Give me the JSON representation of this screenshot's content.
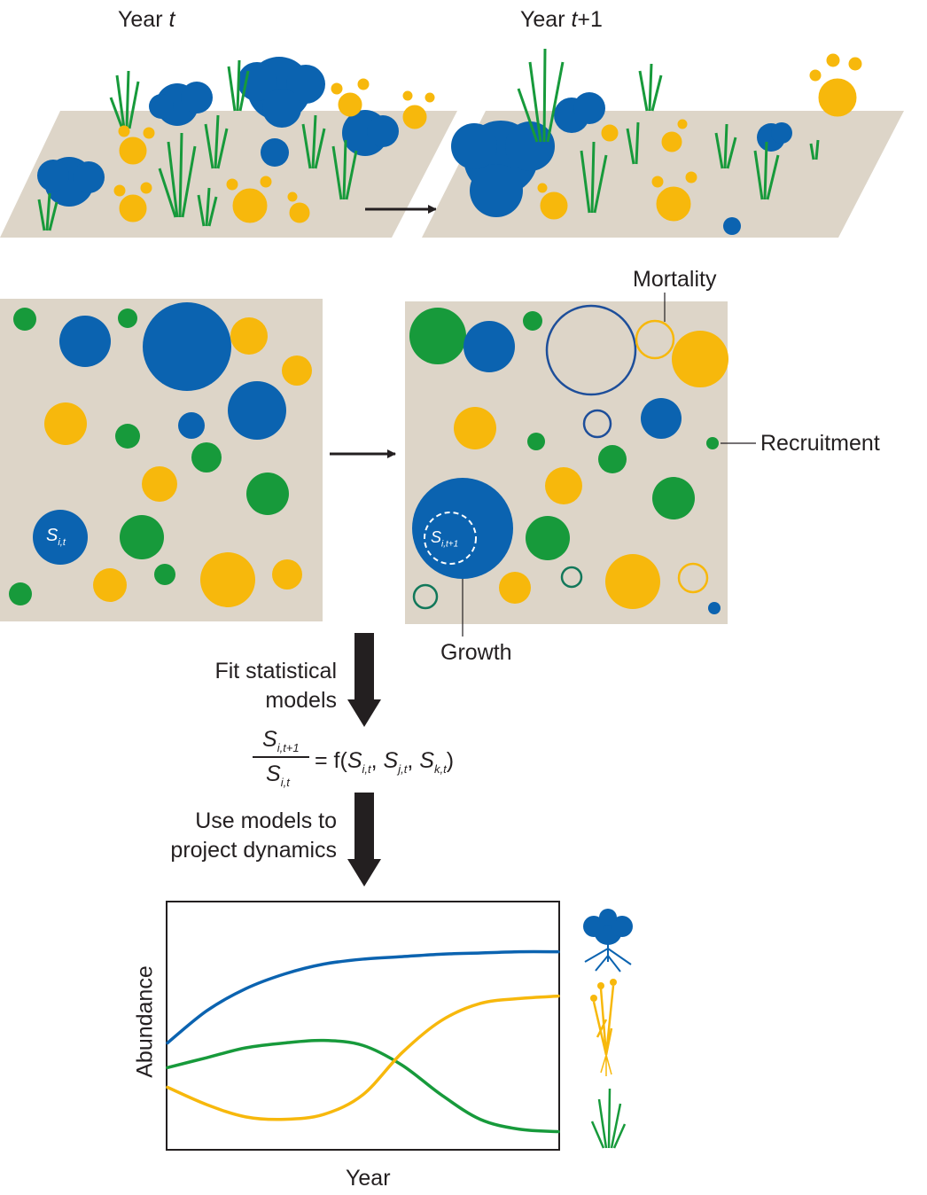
{
  "labels": {
    "year_t_prefix": "Year ",
    "year_t_var": "t",
    "year_t1_prefix": "Year ",
    "year_t1_var": "t",
    "year_t1_suffix": "+1",
    "mortality": "Mortality",
    "recruitment": "Recruitment",
    "growth": "Growth",
    "fit_models_line1": "Fit statistical",
    "fit_models_line2": "models",
    "use_models_line1": "Use models to",
    "use_models_line2": "project dynamics",
    "size_t": "S",
    "size_t_sub": "i,t",
    "size_t1": "S",
    "size_t1_sub": "i,t+1"
  },
  "formula": {
    "numerator": "S",
    "numerator_sub": "i,t+1",
    "denominator": "S",
    "denominator_sub": "i,t",
    "equals_f": "= f(",
    "arg1": "S",
    "arg1_sub": "i,t",
    "arg2": "S",
    "arg2_sub": "j,t",
    "arg3": "S",
    "arg3_sub": "k,t",
    "comma": ", ",
    "close": ")"
  },
  "colors": {
    "blue": "#0b63b0",
    "yellow": "#f7b80c",
    "green": "#179a3b",
    "plot_bg": "#ddd5c8",
    "dark_blue_outline": "#1d4e9a",
    "dark_green_outline": "#12785a"
  },
  "chart_data": {
    "type": "line",
    "xlabel": "Year",
    "ylabel": "Abundance",
    "title": "",
    "x": [
      0,
      0.1,
      0.2,
      0.3,
      0.4,
      0.5,
      0.6,
      0.7,
      0.8,
      0.9,
      1.0
    ],
    "ylim": [
      0,
      1
    ],
    "series": [
      {
        "color": "#0b63b0",
        "values": [
          0.43,
          0.56,
          0.65,
          0.71,
          0.75,
          0.77,
          0.78,
          0.79,
          0.795,
          0.8,
          0.8
        ]
      },
      {
        "color": "#179a3b",
        "values": [
          0.33,
          0.37,
          0.41,
          0.43,
          0.44,
          0.42,
          0.34,
          0.22,
          0.12,
          0.08,
          0.07
        ]
      },
      {
        "color": "#f7b80c",
        "values": [
          0.25,
          0.18,
          0.13,
          0.12,
          0.14,
          0.22,
          0.39,
          0.52,
          0.59,
          0.61,
          0.62
        ]
      }
    ],
    "grid": false,
    "legend": "icons-right"
  },
  "icons": [
    "blue-shrub-icon",
    "yellow-forb-icon",
    "green-grass-icon"
  ]
}
